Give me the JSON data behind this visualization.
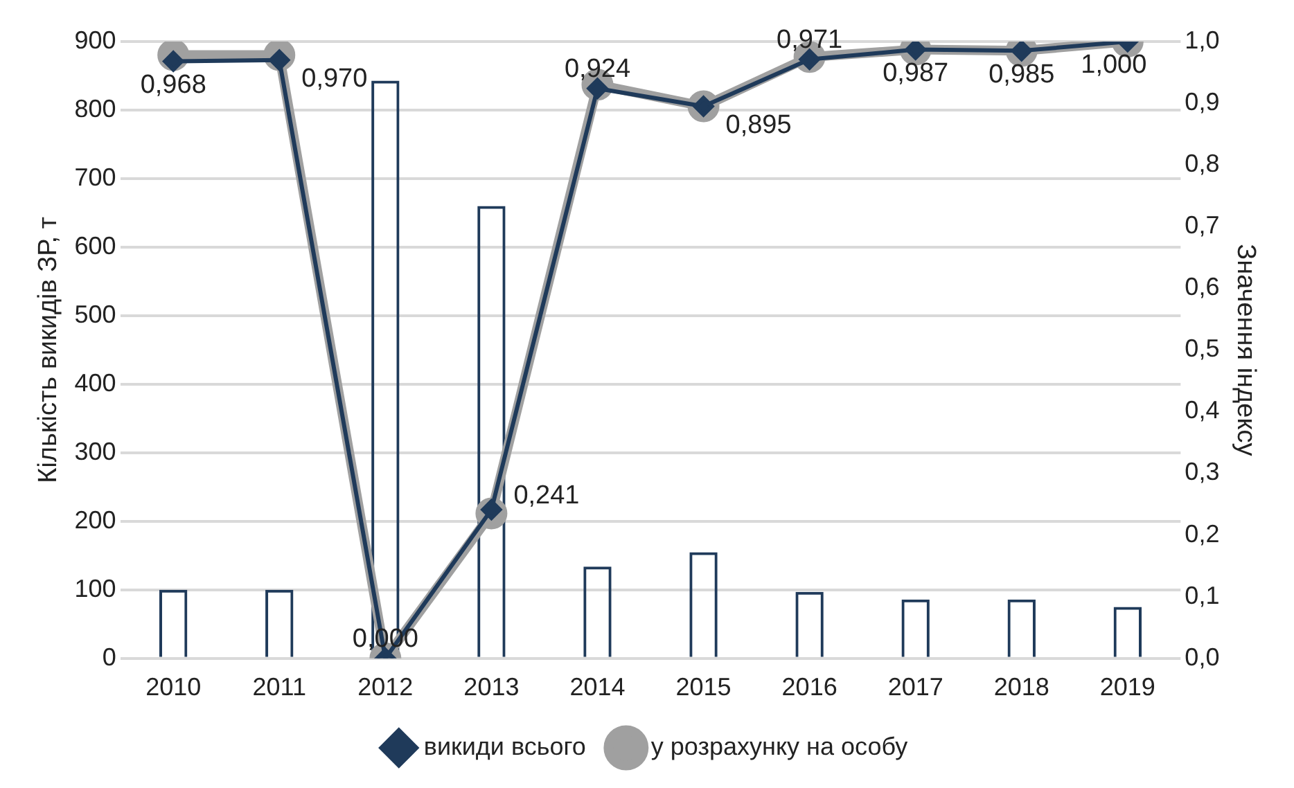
{
  "chart_data": {
    "type": "bar",
    "categories": [
      "2010",
      "2011",
      "2012",
      "2013",
      "2014",
      "2015",
      "2016",
      "2017",
      "2018",
      "2019"
    ],
    "ylabel": "Кількість викидів ЗР, т",
    "y2label": "Значення індексу",
    "ylim": [
      0,
      900
    ],
    "yticks": [
      0,
      100,
      200,
      300,
      400,
      500,
      600,
      700,
      800,
      900
    ],
    "y2lim": [
      0,
      1
    ],
    "y2ticks": [
      {
        "value": 0,
        "label": "0,0"
      },
      {
        "value": 0.1,
        "label": "0,1"
      },
      {
        "value": 0.2,
        "label": "0,2"
      },
      {
        "value": 0.3,
        "label": "0,3"
      },
      {
        "value": 0.4,
        "label": "0,4"
      },
      {
        "value": 0.5,
        "label": "0,5"
      },
      {
        "value": 0.6,
        "label": "0,6"
      },
      {
        "value": 0.7,
        "label": "0,7"
      },
      {
        "value": 0.8,
        "label": "0,8"
      },
      {
        "value": 0.9,
        "label": "0,9"
      },
      {
        "value": 1,
        "label": "1,0"
      }
    ],
    "grid": "y",
    "legend": "bottom",
    "series": [
      {
        "color": "#1f3a5a",
        "values": [
          100,
          100,
          843,
          660,
          134,
          155,
          97,
          86,
          86,
          75
        ]
      },
      {
        "type": "line",
        "name": "викиди всього",
        "color": "#1f3a5a",
        "axis": "y2",
        "marker": "diamond",
        "values": [
          0.968,
          0.97,
          0.0,
          0.241,
          0.924,
          0.895,
          0.971,
          0.987,
          0.985,
          1.0
        ],
        "value_labels": [
          "0,968",
          "0,970",
          "0,000",
          "0,241",
          "0,924",
          "0,895",
          "0,971",
          "0,987",
          "0,985",
          "1,000"
        ]
      },
      {
        "type": "line",
        "name": "у розрахунку на особу",
        "color": "#a0a0a0",
        "axis": "y2",
        "marker": "circle",
        "values": [
          0.978,
          0.978,
          0.0,
          0.235,
          0.93,
          0.895,
          0.975,
          0.987,
          0.985,
          1.0
        ]
      }
    ]
  }
}
